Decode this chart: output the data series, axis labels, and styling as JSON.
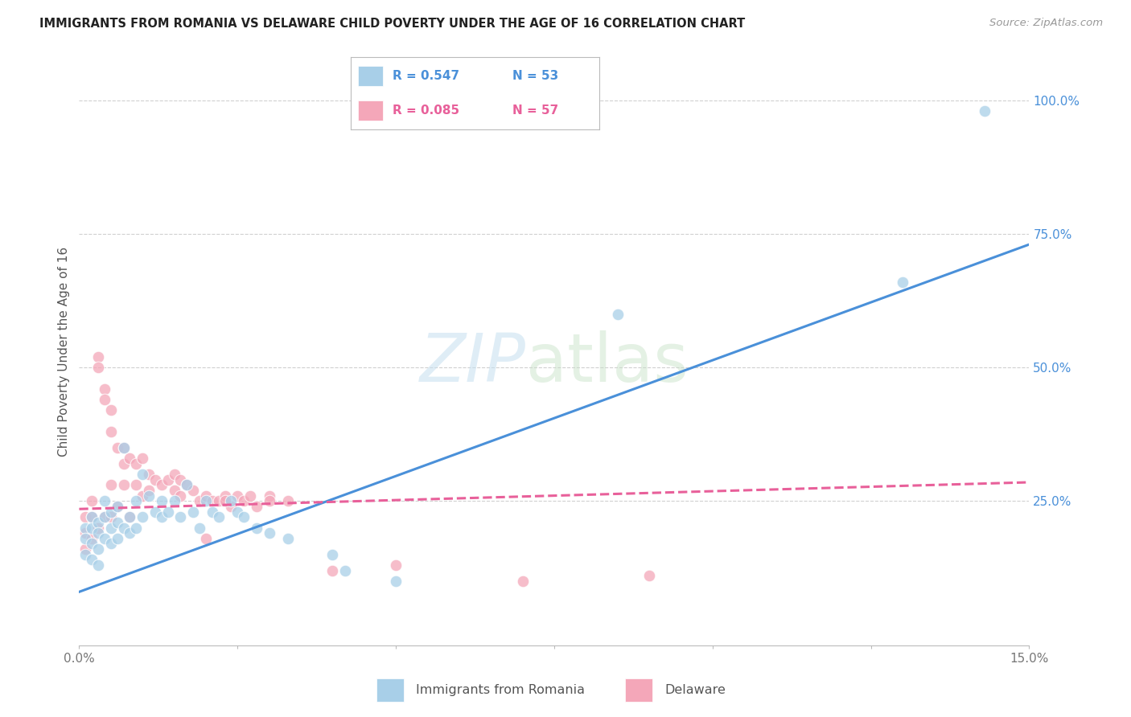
{
  "title": "IMMIGRANTS FROM ROMANIA VS DELAWARE CHILD POVERTY UNDER THE AGE OF 16 CORRELATION CHART",
  "source": "Source: ZipAtlas.com",
  "ylabel": "Child Poverty Under the Age of 16",
  "right_yticks": [
    "100.0%",
    "75.0%",
    "50.0%",
    "25.0%"
  ],
  "right_ytick_vals": [
    1.0,
    0.75,
    0.5,
    0.25
  ],
  "xlim": [
    0.0,
    0.15
  ],
  "ylim": [
    -0.02,
    1.08
  ],
  "blue_color": "#a8cfe8",
  "pink_color": "#f4a7b9",
  "blue_line_color": "#4a90d9",
  "pink_line_color": "#e8609a",
  "grid_color": "#d0d0d0",
  "blue_points_x": [
    0.001,
    0.001,
    0.001,
    0.002,
    0.002,
    0.002,
    0.002,
    0.003,
    0.003,
    0.003,
    0.003,
    0.004,
    0.004,
    0.004,
    0.005,
    0.005,
    0.005,
    0.006,
    0.006,
    0.006,
    0.007,
    0.007,
    0.008,
    0.008,
    0.009,
    0.009,
    0.01,
    0.01,
    0.011,
    0.012,
    0.013,
    0.013,
    0.014,
    0.015,
    0.016,
    0.017,
    0.018,
    0.019,
    0.02,
    0.021,
    0.022,
    0.024,
    0.025,
    0.026,
    0.028,
    0.03,
    0.033,
    0.04,
    0.042,
    0.05,
    0.085,
    0.13,
    0.143
  ],
  "blue_points_y": [
    0.2,
    0.18,
    0.15,
    0.22,
    0.2,
    0.17,
    0.14,
    0.21,
    0.19,
    0.16,
    0.13,
    0.25,
    0.22,
    0.18,
    0.23,
    0.2,
    0.17,
    0.24,
    0.21,
    0.18,
    0.35,
    0.2,
    0.22,
    0.19,
    0.25,
    0.2,
    0.3,
    0.22,
    0.26,
    0.23,
    0.25,
    0.22,
    0.23,
    0.25,
    0.22,
    0.28,
    0.23,
    0.2,
    0.25,
    0.23,
    0.22,
    0.25,
    0.23,
    0.22,
    0.2,
    0.19,
    0.18,
    0.15,
    0.12,
    0.1,
    0.6,
    0.66,
    0.98
  ],
  "pink_points_x": [
    0.001,
    0.001,
    0.001,
    0.002,
    0.002,
    0.002,
    0.003,
    0.003,
    0.003,
    0.004,
    0.004,
    0.004,
    0.005,
    0.005,
    0.005,
    0.006,
    0.006,
    0.007,
    0.007,
    0.007,
    0.008,
    0.008,
    0.009,
    0.009,
    0.01,
    0.01,
    0.011,
    0.011,
    0.012,
    0.013,
    0.014,
    0.015,
    0.015,
    0.016,
    0.016,
    0.017,
    0.018,
    0.019,
    0.02,
    0.021,
    0.022,
    0.023,
    0.024,
    0.025,
    0.026,
    0.027,
    0.028,
    0.03,
    0.033,
    0.04,
    0.05,
    0.07,
    0.09,
    0.03,
    0.005,
    0.02,
    0.023
  ],
  "pink_points_y": [
    0.22,
    0.19,
    0.16,
    0.25,
    0.22,
    0.18,
    0.52,
    0.5,
    0.2,
    0.46,
    0.44,
    0.22,
    0.42,
    0.38,
    0.22,
    0.35,
    0.24,
    0.35,
    0.32,
    0.28,
    0.33,
    0.22,
    0.32,
    0.28,
    0.33,
    0.26,
    0.3,
    0.27,
    0.29,
    0.28,
    0.29,
    0.3,
    0.27,
    0.29,
    0.26,
    0.28,
    0.27,
    0.25,
    0.26,
    0.25,
    0.25,
    0.26,
    0.24,
    0.26,
    0.25,
    0.26,
    0.24,
    0.26,
    0.25,
    0.12,
    0.13,
    0.1,
    0.11,
    0.25,
    0.28,
    0.18,
    0.25
  ],
  "blue_line_x": [
    0.0,
    0.15
  ],
  "blue_line_y": [
    0.08,
    0.73
  ],
  "pink_line_x": [
    0.0,
    0.15
  ],
  "pink_line_y": [
    0.235,
    0.285
  ]
}
